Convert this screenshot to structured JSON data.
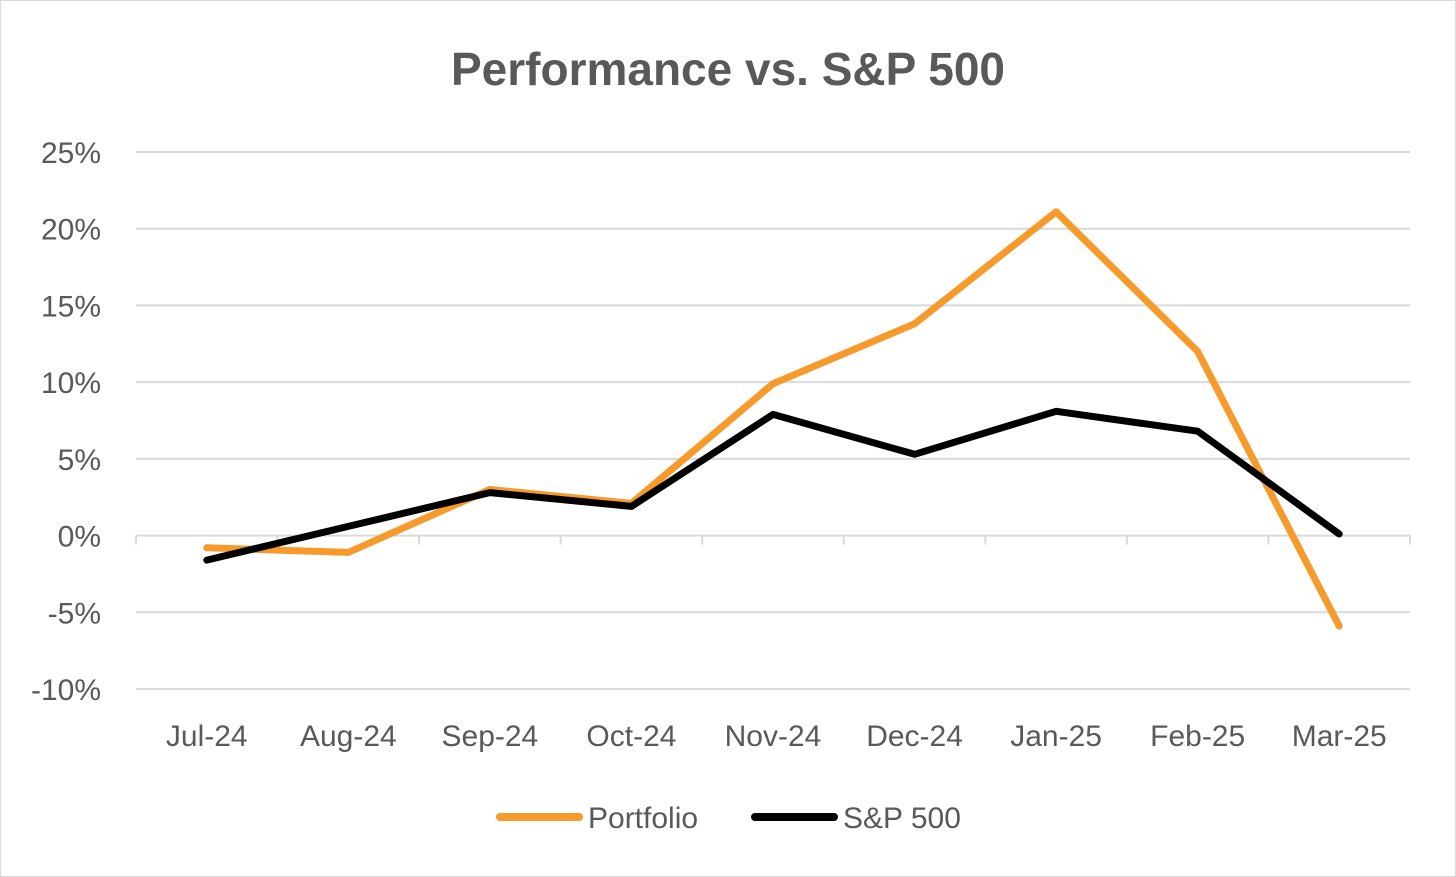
{
  "chart_data": {
    "type": "line",
    "title": "Performance vs. S&P 500",
    "categories": [
      "Jul-24",
      "Aug-24",
      "Sep-24",
      "Oct-24",
      "Nov-24",
      "Dec-24",
      "Jan-25",
      "Feb-25",
      "Mar-25"
    ],
    "y_ticks": [
      "25%",
      "20%",
      "15%",
      "10%",
      "5%",
      "0%",
      "-5%",
      "-10%"
    ],
    "ylim": [
      -10,
      25
    ],
    "ytick_step": 5,
    "grid": true,
    "legend_position": "bottom",
    "series": [
      {
        "name": "Portfolio",
        "color": "#f79a2c",
        "values": [
          -0.8,
          -1.1,
          3.0,
          2.1,
          9.9,
          13.8,
          21.1,
          12.0,
          -5.9
        ]
      },
      {
        "name": "S&P 500",
        "color": "#000000",
        "values": [
          -1.6,
          0.6,
          2.8,
          1.9,
          7.9,
          5.3,
          8.1,
          6.8,
          0.1
        ]
      }
    ]
  }
}
